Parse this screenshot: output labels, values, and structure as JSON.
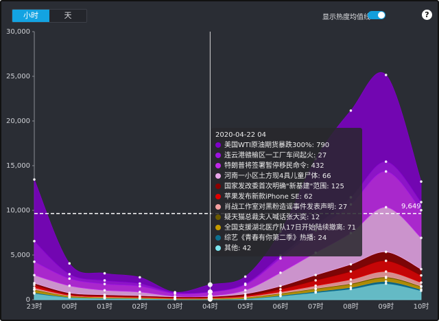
{
  "tabs": [
    {
      "label": "小时",
      "active": true
    },
    {
      "label": "天",
      "active": false
    }
  ],
  "toggle": {
    "label": "显示热度均值线",
    "on": true
  },
  "help_icon": "?",
  "average_line": {
    "label": "9,649",
    "value": 9649
  },
  "tooltip": {
    "title": "2020-04-22 04",
    "rows": [
      {
        "label": "美国WTI原油期货暴跌300%: 790",
        "color": "#7f00c8"
      },
      {
        "label": "连云港赣榆区一工厂车间起火: 27",
        "color": "#9d12e0"
      },
      {
        "label": "特朗普将签署暂停移民命令: 432",
        "color": "#c028e8"
      },
      {
        "label": "河南一小区土方现4具儿童尸体: 66",
        "color": "#e8a6e8"
      },
      {
        "label": "国家发改委首次明确\"新基建\"范围: 125",
        "color": "#8b0000"
      },
      {
        "label": "苹果发布新款iPhone SE: 62",
        "color": "#e00000"
      },
      {
        "label": "肖战工作室对黑粉造谣事件发表声明: 27",
        "color": "#f3a0a0"
      },
      {
        "label": "疑天猫总裁夫人喊话张大奕: 12",
        "color": "#6b5a00"
      },
      {
        "label": "全国支援湖北医疗队17日开始陆续撤离: 71",
        "color": "#c49a00"
      },
      {
        "label": "综艺《青春有你第二季》热播: 24",
        "color": "#0d6f8f"
      },
      {
        "label": "其他: 42",
        "color": "#7de6f0"
      }
    ]
  },
  "chart_data": {
    "type": "area",
    "stacked": true,
    "x": [
      "23时",
      "00时",
      "01时",
      "02时",
      "03时",
      "04时",
      "05时",
      "06时",
      "07时",
      "08时",
      "09时",
      "10时"
    ],
    "ylim": [
      0,
      30000
    ],
    "yticks": [
      0,
      5000,
      10000,
      15000,
      20000,
      25000,
      30000
    ],
    "ytick_labels": [
      "0",
      "5,000",
      "10,000",
      "15,000",
      "20,000",
      "25,000",
      "30,000"
    ],
    "average_line": 9649,
    "highlight_x": "04时",
    "series": [
      {
        "name": "其他",
        "color": "#6fd3df",
        "values": [
          700,
          250,
          150,
          120,
          50,
          42,
          100,
          400,
          800,
          1200,
          1800,
          1000
        ]
      },
      {
        "name": "综艺《青春有你第二季》热播",
        "color": "#0d6f8f",
        "values": [
          100,
          40,
          30,
          25,
          20,
          24,
          40,
          80,
          120,
          180,
          250,
          150
        ]
      },
      {
        "name": "全国支援湖北医疗队17日开始陆续撤离",
        "color": "#c49a00",
        "values": [
          300,
          120,
          90,
          70,
          60,
          71,
          120,
          200,
          280,
          350,
          400,
          300
        ]
      },
      {
        "name": "疑天猫总裁夫人喊话张大奕",
        "color": "#6b5a00",
        "values": [
          50,
          20,
          15,
          12,
          10,
          12,
          20,
          40,
          60,
          80,
          100,
          70
        ]
      },
      {
        "name": "肖战工作室对黑粉造谣事件发表声明",
        "color": "#f3a0a0",
        "values": [
          200,
          60,
          40,
          30,
          25,
          27,
          60,
          150,
          300,
          450,
          600,
          400
        ]
      },
      {
        "name": "苹果发布新款iPhone SE",
        "color": "#e00000",
        "values": [
          300,
          120,
          100,
          80,
          60,
          62,
          120,
          300,
          600,
          900,
          1200,
          800
        ]
      },
      {
        "name": "国家发改委首次明确\"新基建\"范围",
        "color": "#8b0000",
        "values": [
          200,
          150,
          130,
          120,
          110,
          125,
          200,
          350,
          600,
          800,
          1000,
          700
        ]
      },
      {
        "name": "河南一小区土方现4具儿童尸体",
        "color": "#e8a6e8",
        "values": [
          900,
          800,
          500,
          400,
          50,
          66,
          400,
          1500,
          2500,
          3500,
          5000,
          3500
        ]
      },
      {
        "name": "特朗普将签署暂停移民命令",
        "color": "#c028e8",
        "values": [
          1500,
          800,
          700,
          650,
          300,
          432,
          600,
          1600,
          2500,
          3200,
          4000,
          3100
        ]
      },
      {
        "name": "连云港赣榆区一工厂车间起火",
        "color": "#9d12e0",
        "values": [
          2300,
          500,
          400,
          300,
          100,
          27,
          120,
          300,
          500,
          800,
          1100,
          900
        ]
      },
      {
        "name": "美国WTI原油期货暴跌300%",
        "color": "#7f00c8",
        "values": [
          6900,
          1200,
          800,
          700,
          60,
          790,
          800,
          2700,
          7500,
          9700,
          9700,
          2300
        ]
      }
    ]
  }
}
